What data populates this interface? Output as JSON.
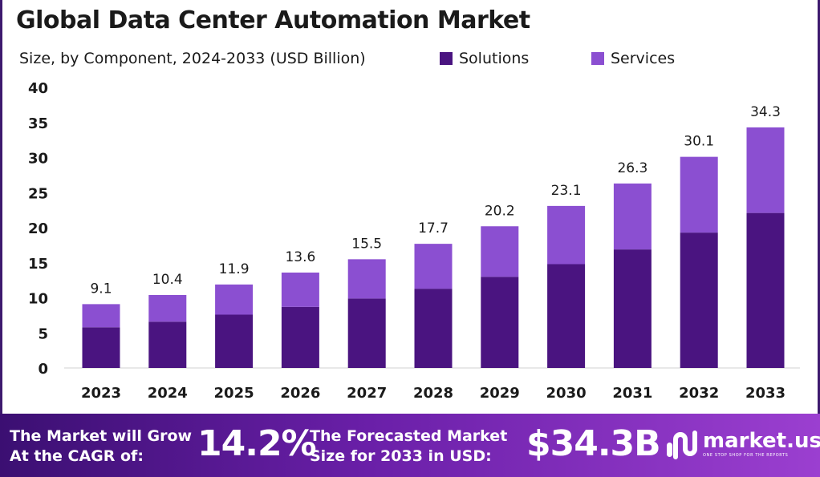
{
  "header": {
    "title": "Global Data Center Automation Market",
    "subtitle": "Size, by Component, 2024-2033 (USD Billion)"
  },
  "chart_data": {
    "type": "bar",
    "stacked": true,
    "categories": [
      "2023",
      "2024",
      "2025",
      "2026",
      "2027",
      "2028",
      "2029",
      "2030",
      "2031",
      "2032",
      "2033"
    ],
    "series": [
      {
        "name": "Solutions",
        "color": "#4a1480",
        "values": [
          5.8,
          6.6,
          7.6,
          8.7,
          9.9,
          11.3,
          13.0,
          14.8,
          16.9,
          19.3,
          22.1
        ]
      },
      {
        "name": "Services",
        "color": "#8b4fd1",
        "values": [
          3.3,
          3.8,
          4.3,
          4.9,
          5.6,
          6.4,
          7.2,
          8.3,
          9.4,
          10.8,
          12.2
        ]
      }
    ],
    "totals": [
      "9.1",
      "10.4",
      "11.9",
      "13.6",
      "15.5",
      "17.7",
      "20.2",
      "23.1",
      "26.3",
      "30.1",
      "34.3"
    ],
    "ylim": [
      0,
      40
    ],
    "yticks": [
      0,
      5,
      10,
      15,
      20,
      25,
      30,
      35,
      40
    ],
    "legend_position": "top-right",
    "grid": false
  },
  "banner": {
    "cagr_label_line1": "The Market will Grow",
    "cagr_label_line2": "At the CAGR of:",
    "cagr_value": "14.2%",
    "forecast_label_line1": "The Forecasted Market",
    "forecast_label_line2": "Size for 2033 in USD:",
    "forecast_value": "$34.3B"
  },
  "brand": {
    "name": "market.us",
    "tagline": "ONE STOP SHOP FOR THE REPORTS",
    "logo_icon": "market-us-logo-icon"
  }
}
